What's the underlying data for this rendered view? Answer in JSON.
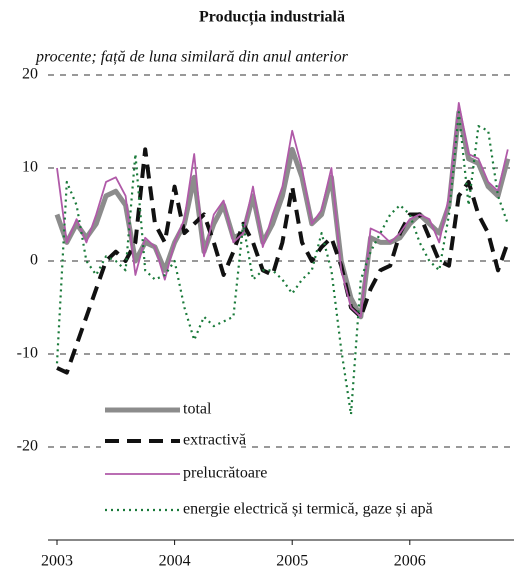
{
  "chart_data": {
    "type": "line",
    "title": "Producția industrială",
    "subtitle": "procente; față de luna similară din anul anterior",
    "categories": [
      "2003",
      null,
      null,
      null,
      null,
      null,
      null,
      null,
      null,
      null,
      null,
      null,
      "2004",
      null,
      null,
      null,
      null,
      null,
      null,
      null,
      null,
      null,
      null,
      null,
      "2005",
      null,
      null,
      null,
      null,
      null,
      null,
      null,
      null,
      null,
      null,
      null,
      "2006",
      null,
      null,
      null,
      null,
      null,
      null,
      null,
      null,
      null,
      null
    ],
    "series": [
      {
        "name": "total",
        "color": "#8c8c8c",
        "values": [
          5,
          2,
          4,
          2.5,
          4,
          7,
          7.5,
          6,
          0,
          2,
          1.5,
          -1,
          2,
          4,
          9,
          1,
          4,
          6,
          2.5,
          3,
          7,
          2,
          4,
          7,
          12,
          9,
          4,
          5,
          9,
          0,
          -4,
          -6,
          2.5,
          2,
          2,
          2.5,
          4,
          5,
          4,
          3,
          6,
          16,
          11,
          10.5,
          8,
          7,
          11
        ]
      },
      {
        "name": "extractivă",
        "color": "#111111",
        "values": [
          -11.5,
          -12,
          -9,
          -6,
          -3,
          0,
          1,
          0,
          2,
          12,
          4,
          2,
          8,
          3,
          4,
          5,
          2,
          -1.5,
          1,
          4,
          2,
          -1,
          -1.5,
          2,
          8,
          2,
          0,
          1.5,
          2.5,
          -0.5,
          -5,
          -6,
          -3,
          -1,
          -0.5,
          3,
          5,
          5,
          2.5,
          0,
          -0.5,
          7,
          8.5,
          5,
          3,
          -1,
          2
        ]
      },
      {
        "name": "prelucrătoare",
        "color": "#b05aa8",
        "values": [
          10,
          2,
          4.5,
          2,
          5,
          8.5,
          9,
          7,
          -1.5,
          2.5,
          1.5,
          -2,
          2,
          4.5,
          11.5,
          0.5,
          5,
          6.5,
          2,
          3,
          8,
          1.5,
          5,
          8,
          14,
          10,
          4,
          5.5,
          10,
          -1,
          -5,
          -6,
          3.5,
          3,
          2,
          3,
          4.5,
          5,
          4.5,
          2,
          7,
          17,
          11.5,
          11,
          8.5,
          7.5,
          12
        ]
      },
      {
        "name": "energie electrică și termică, gaze și apă",
        "color": "#1a7a3a",
        "values": [
          -11,
          8.5,
          6,
          0,
          -1.5,
          0.5,
          0,
          -1,
          11.5,
          -1,
          -2,
          -1.5,
          0,
          -5,
          -8.5,
          -6,
          -7,
          -6.5,
          -6,
          4,
          -2,
          -1,
          -1,
          -2,
          -3.5,
          -2,
          -1,
          3,
          -1,
          -9.5,
          -16.5,
          -2,
          1,
          3,
          5,
          6,
          5,
          2,
          0,
          -1,
          5,
          16,
          6,
          14.5,
          14,
          7,
          4
        ]
      }
    ],
    "ylim": [
      -30,
      20
    ],
    "yticks": [
      20,
      10,
      0,
      -10,
      -20
    ],
    "grid": true,
    "legend": "lower left"
  }
}
